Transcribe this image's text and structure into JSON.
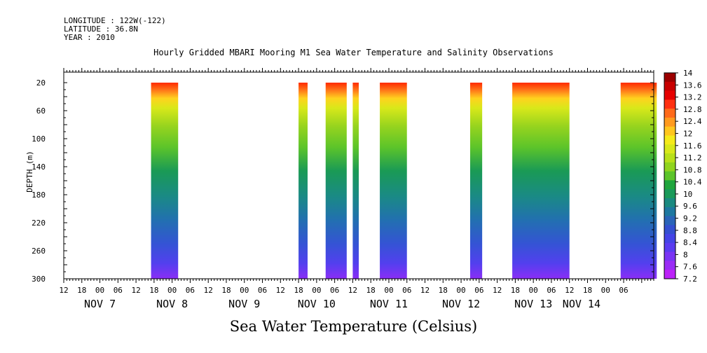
{
  "header": {
    "longitude": "LONGITUDE : 122W(-122)",
    "latitude": "LATITUDE : 36.8N",
    "year": "YEAR : 2010"
  },
  "chart_data": {
    "type": "heatmap",
    "title": "Hourly Gridded MBARI Mooring M1 Sea Water Temperature and Salinity Observations",
    "xlabel": "Sea Water Temperature (Celsius)",
    "ylabel": "DEPTH (m)",
    "x_range_hours_from_nov7_00": [
      -12,
      184
    ],
    "y_ticks": [
      "20",
      "60",
      "100",
      "140",
      "180",
      "220",
      "260",
      "300"
    ],
    "y_range": [
      300,
      5
    ],
    "hour_ticks": [
      "12",
      "18",
      "00",
      "06",
      "12",
      "18",
      "00",
      "06",
      "12",
      "18",
      "00",
      "06",
      "12",
      "18",
      "00",
      "06",
      "12",
      "18",
      "00",
      "06",
      "12",
      "18",
      "00",
      "06",
      "12",
      "18",
      "00",
      "06",
      "12",
      "18",
      "00",
      "06"
    ],
    "day_labels": [
      "NOV  7",
      "NOV  8",
      "NOV  9",
      "NOV 10",
      "NOV 11",
      "NOV 12",
      "NOV 13",
      "NOV 14"
    ],
    "data_segments": [
      {
        "start_hour": 17,
        "end_hour": 26
      },
      {
        "start_hour": 66,
        "end_hour": 69
      },
      {
        "start_hour": 75,
        "end_hour": 82
      },
      {
        "start_hour": 84,
        "end_hour": 86
      },
      {
        "start_hour": 93,
        "end_hour": 102
      },
      {
        "start_hour": 123,
        "end_hour": 127
      },
      {
        "start_hour": 137,
        "end_hour": 156
      },
      {
        "start_hour": 173,
        "end_hour": 185
      }
    ],
    "colorbar": {
      "min": 7.2,
      "max": 14.0,
      "labels": [
        "14",
        "13.6",
        "13.2",
        "12.8",
        "12.4",
        "12",
        "11.6",
        "11.2",
        "10.8",
        "10.4",
        "10",
        "9.6",
        "9.2",
        "8.8",
        "8.4",
        "8",
        "7.6",
        "7.2"
      ],
      "colors": [
        "#9c0000",
        "#c80000",
        "#e60000",
        "#ff3010",
        "#ff6a1a",
        "#ff9a1e",
        "#ffc61e",
        "#f5ea1a",
        "#d8e81a",
        "#b8e01a",
        "#90d41e",
        "#5cc42a",
        "#1fa53d",
        "#1a9a5a",
        "#1a8a80",
        "#1e78a0",
        "#2a64b8",
        "#3450d0",
        "#4444e6",
        "#5a3cf0",
        "#7a34f4",
        "#9a2cf6",
        "#bc22f8"
      ]
    }
  }
}
